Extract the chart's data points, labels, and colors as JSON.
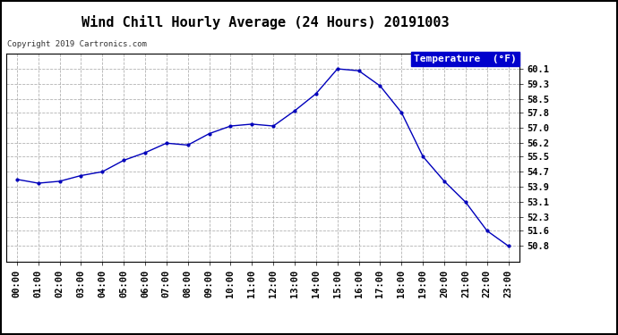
{
  "title": "Wind Chill Hourly Average (24 Hours) 20191003",
  "copyright_text": "Copyright 2019 Cartronics.com",
  "legend_label": "Temperature  (°F)",
  "hours": [
    0,
    1,
    2,
    3,
    4,
    5,
    6,
    7,
    8,
    9,
    10,
    11,
    12,
    13,
    14,
    15,
    16,
    17,
    18,
    19,
    20,
    21,
    22,
    23
  ],
  "x_labels": [
    "00:00",
    "01:00",
    "02:00",
    "03:00",
    "04:00",
    "05:00",
    "06:00",
    "07:00",
    "08:00",
    "09:00",
    "10:00",
    "11:00",
    "12:00",
    "13:00",
    "14:00",
    "15:00",
    "16:00",
    "17:00",
    "18:00",
    "19:00",
    "20:00",
    "21:00",
    "22:00",
    "23:00"
  ],
  "temps": [
    54.3,
    54.1,
    54.2,
    54.5,
    54.7,
    55.3,
    55.7,
    56.2,
    56.1,
    56.7,
    57.1,
    57.2,
    57.1,
    57.9,
    58.8,
    60.1,
    60.0,
    59.2,
    57.8,
    55.5,
    54.2,
    53.1,
    51.6,
    50.8
  ],
  "ylim_min": 50.0,
  "ylim_max": 60.9,
  "yticks": [
    50.8,
    51.6,
    52.3,
    53.1,
    53.9,
    54.7,
    55.5,
    56.2,
    57.0,
    57.8,
    58.5,
    59.3,
    60.1
  ],
  "line_color": "#0000bb",
  "marker_color": "#0000bb",
  "background_color": "#ffffff",
  "plot_bg_color": "#ffffff",
  "grid_color": "#aaaaaa",
  "title_fontsize": 11,
  "tick_fontsize": 7.5,
  "copyright_fontsize": 6.5,
  "legend_bg": "#0000cc",
  "legend_fg": "#ffffff",
  "outer_border_color": "#000000"
}
